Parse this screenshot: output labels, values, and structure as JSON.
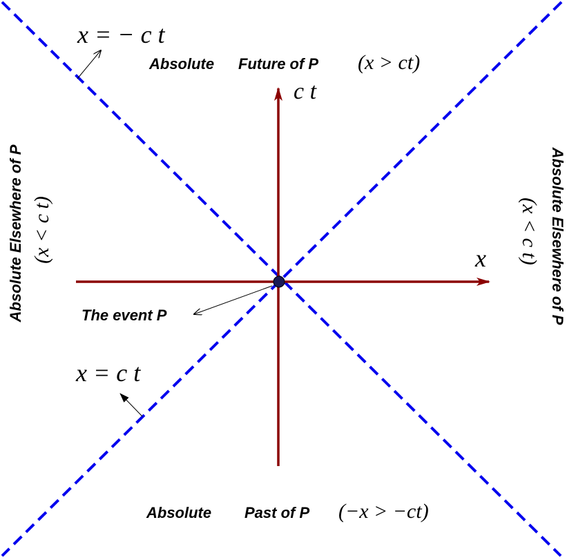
{
  "colors": {
    "light_cone": "#0000ee",
    "axes": "#8b0000",
    "event_fill": "#1a1a55",
    "text": "#000000"
  },
  "labels": {
    "future": {
      "word": "Absolute",
      "rest": "Future of P",
      "condition": "(x > ct)"
    },
    "past": {
      "word": "Absolute",
      "rest": "Past of P",
      "condition": "(−x > −ct)"
    },
    "elsewhere_left": {
      "text": "Absolute Elsewhere of P",
      "condition": "(x < c t)"
    },
    "elsewhere_right": {
      "text": "Absolute Elsewhere of P",
      "condition": "(x < c t)"
    },
    "event": "The event P",
    "axis_ct": "c t",
    "axis_x": "x",
    "line_upper": "x = − c t",
    "line_lower": "x =  c t"
  }
}
